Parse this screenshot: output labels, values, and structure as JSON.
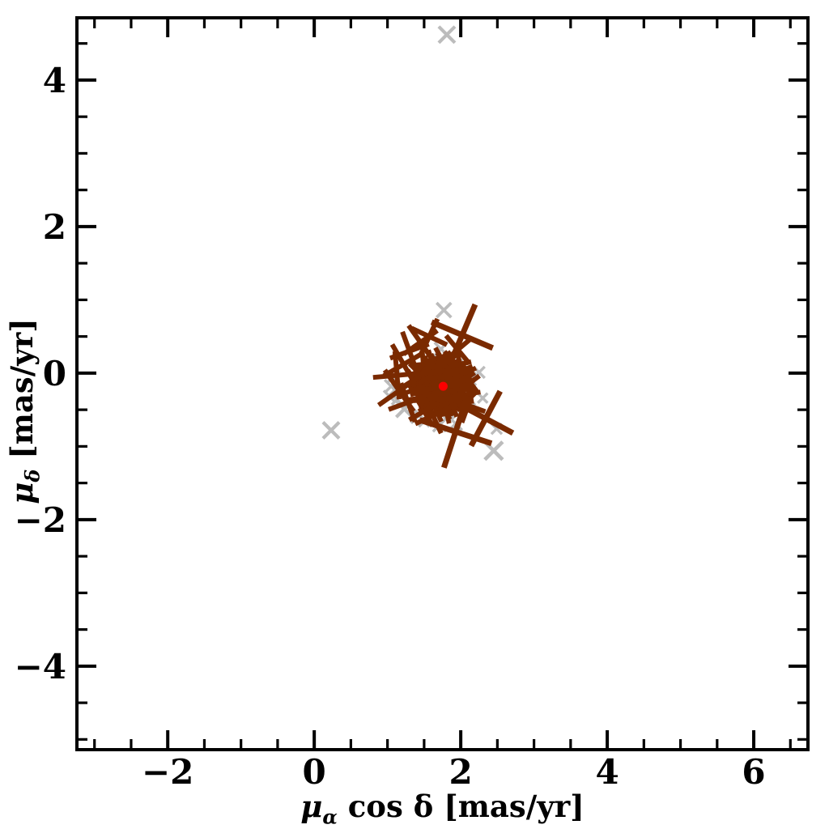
{
  "figure": {
    "background": "#ffffff",
    "frame_color": "#000000",
    "field_star_color": "#bcbcbc",
    "cluster_color": "#7a2a00",
    "mean_dot_color": "#ff0000"
  },
  "axes": {
    "xlabel_mu": "μ",
    "xlabel_sub": "α",
    "xlabel_rest": "cos δ [mas/yr]",
    "ylabel_mu": "μ",
    "ylabel_sub": "δ",
    "ylabel_rest": "[mas/yr]",
    "x_tick_labels": [
      "−2",
      "0",
      "2",
      "4",
      "6"
    ],
    "y_tick_labels": [
      "4",
      "2",
      "0",
      "−2",
      "−4"
    ]
  },
  "chart_data": {
    "type": "scatter",
    "title": "",
    "xlabel": "μ_α cos δ [mas/yr]",
    "ylabel": "μ_δ [mas/yr]",
    "xlim": [
      -3.24,
      6.74
    ],
    "ylim": [
      -5.14,
      4.85
    ],
    "x_major_ticks": [
      -2,
      0,
      2,
      4,
      6
    ],
    "y_major_ticks": [
      -4,
      -2,
      0,
      2,
      4
    ],
    "minor_tick_step": 0.5,
    "grid": false,
    "legend": null,
    "series": [
      {
        "name": "field_stars",
        "marker": "x",
        "color": "#bcbcbc",
        "points": [
          [
            1.81,
            4.62,
            20
          ],
          [
            1.77,
            0.86,
            18
          ],
          [
            1.73,
            0.33,
            16
          ],
          [
            2.25,
            0.01,
            14
          ],
          [
            2.12,
            -0.08,
            16
          ],
          [
            2.3,
            -0.34,
            12
          ],
          [
            0.23,
            -0.78,
            20
          ],
          [
            2.45,
            -1.06,
            22
          ],
          [
            1.23,
            -0.49,
            20
          ],
          [
            1.43,
            -0.57,
            20
          ],
          [
            1.71,
            -0.71,
            16
          ],
          [
            1.93,
            -0.69,
            16
          ],
          [
            2.12,
            -0.49,
            14
          ],
          [
            2.49,
            -0.76,
            13
          ],
          [
            1.08,
            -0.05,
            16
          ],
          [
            1.05,
            -0.18,
            16
          ],
          [
            1.02,
            -0.31,
            13
          ],
          [
            1.13,
            -0.36,
            13
          ],
          [
            1.96,
            0.12,
            12
          ],
          [
            1.5,
            -0.66,
            13
          ],
          [
            1.84,
            -0.55,
            13
          ],
          [
            1.62,
            0.21,
            12
          ]
        ]
      },
      {
        "name": "cluster_members",
        "marker": "x",
        "color": "#7a2a00",
        "points": [
          [
            1.76,
            -0.18,
            28,
            0
          ],
          [
            1.83,
            -0.16,
            24,
            12
          ],
          [
            1.8,
            -0.11,
            26,
            24
          ],
          [
            1.72,
            -0.12,
            24,
            36
          ],
          [
            1.69,
            -0.2,
            26,
            8
          ],
          [
            1.74,
            -0.25,
            24,
            20
          ],
          [
            1.81,
            -0.24,
            26,
            32
          ],
          [
            1.79,
            -0.08,
            24,
            4
          ],
          [
            1.73,
            -0.16,
            26,
            16
          ],
          [
            1.83,
            -0.2,
            24,
            28
          ],
          [
            1.76,
            -0.28,
            26,
            40
          ],
          [
            1.68,
            -0.24,
            24,
            0
          ],
          [
            1.64,
            -0.16,
            26,
            12
          ],
          [
            1.72,
            -0.36,
            24,
            24
          ],
          [
            1.86,
            -0.12,
            26,
            36
          ],
          [
            1.94,
            -0.19,
            24,
            8
          ],
          [
            1.58,
            -0.28,
            26,
            20
          ],
          [
            1.5,
            -0.18,
            24,
            32
          ],
          [
            1.87,
            -0.37,
            24,
            4
          ],
          [
            1.96,
            -0.28,
            24,
            16
          ],
          [
            1.62,
            -0.05,
            26,
            28
          ],
          [
            1.84,
            0.02,
            24,
            40
          ],
          [
            1.91,
            -0.14,
            24,
            0
          ],
          [
            1.88,
            -0.06,
            26,
            12
          ],
          [
            1.79,
            -0.03,
            24,
            24
          ],
          [
            1.7,
            -0.05,
            26,
            36
          ],
          [
            1.62,
            -0.11,
            24,
            8
          ],
          [
            1.61,
            -0.21,
            26,
            20
          ],
          [
            1.66,
            -0.29,
            24,
            32
          ],
          [
            1.75,
            -0.33,
            26,
            4
          ],
          [
            1.85,
            -0.31,
            24,
            16
          ],
          [
            1.91,
            -0.23,
            26,
            28
          ],
          [
            1.99,
            -0.16,
            24,
            40
          ],
          [
            1.97,
            -0.05,
            22,
            0
          ],
          [
            1.89,
            0.03,
            24,
            12
          ],
          [
            1.78,
            0.06,
            22,
            24
          ],
          [
            1.67,
            0.04,
            24,
            36
          ],
          [
            1.57,
            -0.02,
            22,
            8
          ],
          [
            1.53,
            -0.12,
            24,
            20
          ],
          [
            1.54,
            -0.23,
            22,
            32
          ],
          [
            1.6,
            -0.33,
            24,
            4
          ],
          [
            1.7,
            -0.4,
            22,
            16
          ],
          [
            1.82,
            -0.41,
            24,
            28
          ],
          [
            1.93,
            -0.34,
            22,
            40
          ],
          [
            2.07,
            -0.2,
            22,
            0
          ],
          [
            2.06,
            -0.08,
            20,
            12
          ],
          [
            2.0,
            0.03,
            22,
            24
          ],
          [
            1.9,
            0.11,
            20,
            36
          ],
          [
            1.78,
            0.14,
            22,
            8
          ],
          [
            1.66,
            0.12,
            20,
            20
          ],
          [
            1.55,
            0.07,
            22,
            32
          ],
          [
            1.47,
            -0.02,
            20,
            4
          ],
          [
            1.44,
            -0.13,
            22,
            16
          ],
          [
            1.46,
            -0.25,
            20,
            28
          ],
          [
            1.53,
            -0.36,
            22,
            40
          ],
          [
            1.63,
            -0.45,
            20,
            0
          ],
          [
            1.76,
            -0.49,
            22,
            12
          ],
          [
            1.89,
            -0.45,
            20,
            24
          ],
          [
            2.13,
            -0.28,
            18,
            36
          ],
          [
            2.13,
            -0.13,
            20,
            8
          ],
          [
            2.08,
            0.01,
            18,
            20
          ],
          [
            1.99,
            0.12,
            20,
            32
          ],
          [
            1.87,
            0.19,
            18,
            4
          ],
          [
            1.73,
            0.21,
            20,
            16
          ],
          [
            1.6,
            0.18,
            18,
            28
          ],
          [
            1.49,
            0.12,
            20,
            40
          ],
          [
            1.4,
            0.03,
            18,
            0
          ],
          [
            1.36,
            -0.09,
            20,
            12
          ],
          [
            1.38,
            -0.22,
            18,
            24
          ],
          [
            1.44,
            -0.34,
            20,
            36
          ],
          [
            1.54,
            -0.44,
            18,
            8
          ],
          [
            1.67,
            -0.52,
            20,
            20
          ],
          [
            1.81,
            -0.55,
            18,
            32
          ],
          [
            1.99,
            -0.4,
            18,
            4
          ],
          [
            1.45,
            0.42,
            36,
            10
          ],
          [
            1.57,
            0.5,
            34,
            -20
          ],
          [
            1.3,
            0.3,
            36,
            25
          ],
          [
            1.22,
            0.12,
            40,
            15
          ],
          [
            1.13,
            -0.03,
            42,
            40
          ],
          [
            1.16,
            -0.24,
            44,
            10
          ],
          [
            1.28,
            -0.4,
            36,
            25
          ],
          [
            1.96,
            0.32,
            32,
            5
          ],
          [
            1.62,
            -0.58,
            34,
            20
          ],
          [
            2.1,
            -0.44,
            32,
            -25
          ],
          [
            1.5,
            -0.52,
            30,
            15
          ],
          [
            2.02,
            0.52,
            58,
            -22
          ],
          [
            1.93,
            -0.8,
            66,
            -27
          ],
          [
            2.34,
            -0.62,
            54,
            -17
          ]
        ]
      },
      {
        "name": "cluster_mean",
        "marker": "dot",
        "color": "#ff0000",
        "points": [
          [
            1.76,
            -0.18,
            11
          ]
        ]
      }
    ]
  }
}
